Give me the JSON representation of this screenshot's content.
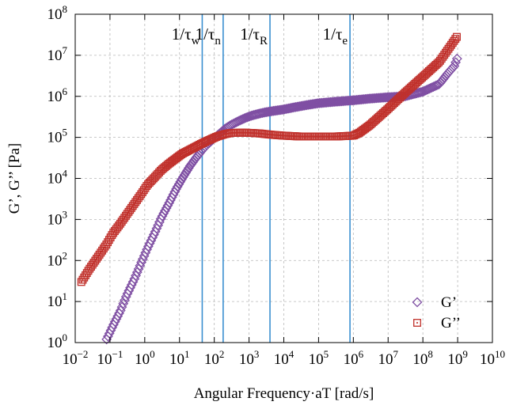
{
  "chart_data": {
    "type": "scatter",
    "title": "",
    "xlabel": "Angular Frequency·aT [rad/s]",
    "ylabel": "G’, G’’ [Pa]",
    "x_scale": "log",
    "y_scale": "log",
    "xlim": [
      0.01,
      10000000000
    ],
    "ylim": [
      1,
      100000000
    ],
    "grid": true,
    "legend_position": "bottom-right",
    "x_ticks": [
      {
        "value": 0.01,
        "base": "10",
        "exp": "−2"
      },
      {
        "value": 0.1,
        "base": "10",
        "exp": "−1"
      },
      {
        "value": 1,
        "base": "10",
        "exp": "0"
      },
      {
        "value": 10,
        "base": "10",
        "exp": "1"
      },
      {
        "value": 100,
        "base": "10",
        "exp": "2"
      },
      {
        "value": 1000,
        "base": "10",
        "exp": "3"
      },
      {
        "value": 10000,
        "base": "10",
        "exp": "4"
      },
      {
        "value": 100000,
        "base": "10",
        "exp": "5"
      },
      {
        "value": 1000000,
        "base": "10",
        "exp": "6"
      },
      {
        "value": 10000000,
        "base": "10",
        "exp": "7"
      },
      {
        "value": 100000000,
        "base": "10",
        "exp": "8"
      },
      {
        "value": 1000000000,
        "base": "10",
        "exp": "9"
      },
      {
        "value": 10000000000,
        "base": "10",
        "exp": "10"
      }
    ],
    "y_ticks": [
      {
        "value": 1,
        "base": "10",
        "exp": "0"
      },
      {
        "value": 10,
        "base": "10",
        "exp": "1"
      },
      {
        "value": 100,
        "base": "10",
        "exp": "2"
      },
      {
        "value": 1000,
        "base": "10",
        "exp": "3"
      },
      {
        "value": 10000,
        "base": "10",
        "exp": "4"
      },
      {
        "value": 100000,
        "base": "10",
        "exp": "5"
      },
      {
        "value": 1000000,
        "base": "10",
        "exp": "6"
      },
      {
        "value": 10000000,
        "base": "10",
        "exp": "7"
      },
      {
        "value": 100000000,
        "base": "10",
        "exp": "8"
      }
    ],
    "vlines": [
      {
        "x": 45,
        "label": "1/τ",
        "sub": "w"
      },
      {
        "x": 180,
        "label": "1/τ",
        "sub": "n"
      },
      {
        "x": 4000,
        "label": "1/τ",
        "sub": "R"
      },
      {
        "x": 800000,
        "label": "1/τ",
        "sub": "e"
      }
    ],
    "series": [
      {
        "name": "G’",
        "marker": "diamond",
        "color": "#7f4fa3",
        "x": [
          0.08,
          0.12,
          0.2,
          0.3,
          0.5,
          0.8,
          1.2,
          2,
          3,
          5,
          8,
          12,
          20,
          30,
          50,
          80,
          120,
          200,
          300,
          500,
          800,
          1200,
          2000,
          3000,
          5000,
          10000,
          20000,
          50000,
          100000,
          300000,
          1000000,
          3000000,
          10000000,
          30000000,
          100000000,
          300000000,
          500000000,
          800000000,
          1000000000
        ],
        "y": [
          1.2,
          2.5,
          6,
          14,
          35,
          90,
          200,
          500,
          1100,
          2500,
          5500,
          10000,
          20000,
          32000,
          55000,
          80000,
          110000,
          160000,
          200000,
          250000,
          300000,
          340000,
          380000,
          410000,
          440000,
          480000,
          540000,
          620000,
          680000,
          740000,
          800000,
          880000,
          950000,
          1000000,
          1300000,
          2000000,
          3500000,
          5500000,
          9000000
        ]
      },
      {
        "name": "G’’",
        "marker": "square",
        "color": "#c0302b",
        "x": [
          0.015,
          0.025,
          0.05,
          0.08,
          0.12,
          0.2,
          0.3,
          0.5,
          0.8,
          1.2,
          2,
          3,
          5,
          8,
          12,
          20,
          30,
          50,
          80,
          120,
          200,
          300,
          500,
          800,
          1200,
          2000,
          3000,
          5000,
          10000,
          30000,
          100000,
          300000,
          1000000,
          1500000,
          3000000,
          10000000,
          30000000,
          100000000,
          300000000,
          1000000000
        ],
        "y": [
          30,
          60,
          140,
          250,
          450,
          800,
          1300,
          2400,
          4200,
          7000,
          11000,
          16000,
          23000,
          31000,
          40000,
          50000,
          60000,
          75000,
          90000,
          105000,
          120000,
          128000,
          130000,
          130000,
          128000,
          125000,
          120000,
          115000,
          110000,
          105000,
          105000,
          105000,
          110000,
          130000,
          200000,
          500000,
          1200000,
          3000000,
          7000000,
          30000000
        ]
      }
    ]
  }
}
